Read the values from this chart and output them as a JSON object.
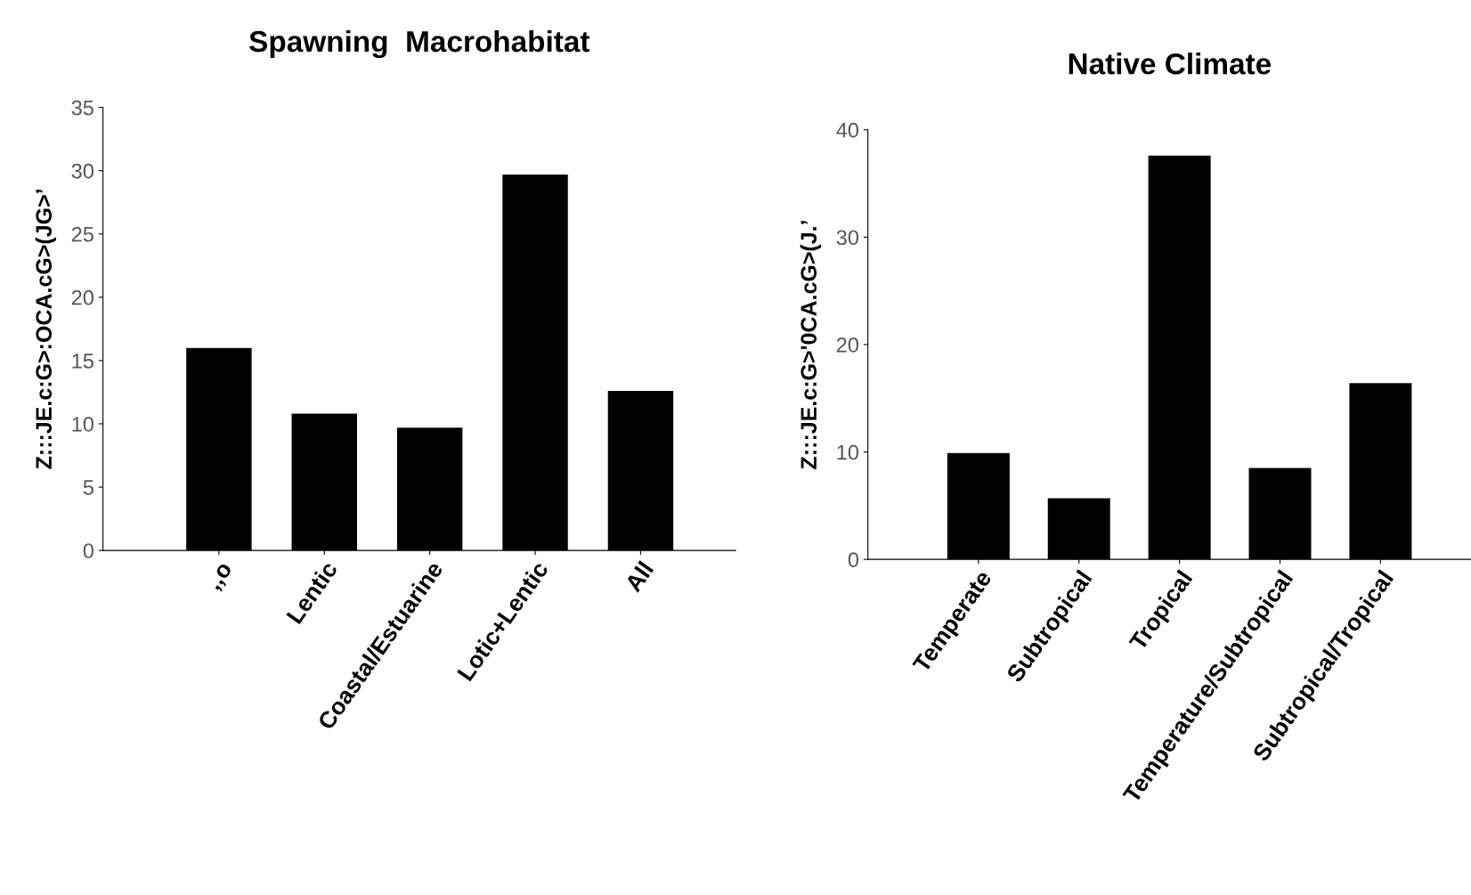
{
  "chart_data": [
    {
      "type": "bar",
      "title": "Spawning  Macrohabitat",
      "ylabel": "Z:::JE.c:G>:OCA.cG>(JG>’",
      "categories": [
        ",,o",
        "Lentic",
        "Coastal/Estuarine",
        "Lotic+Lentic",
        "All"
      ],
      "values": [
        16,
        10.8,
        9.7,
        29.7,
        12.6
      ],
      "color": "#000000",
      "ylim": [
        0,
        35
      ],
      "yticks": [
        0,
        5,
        10,
        15,
        20,
        25,
        30,
        35
      ],
      "grid": false,
      "legend": false
    },
    {
      "type": "bar",
      "title": "Native Climate",
      "ylabel": "Z:::JE.c:G>'0CA.cG>(J.’",
      "categories": [
        "Temperate",
        "Subtropical",
        "Tropical",
        "Temperature/Subtropical",
        "Subtropical/Tropical"
      ],
      "values": [
        9.9,
        5.7,
        37.6,
        8.5,
        16.4
      ],
      "color": "#000000",
      "ylim": [
        0,
        40
      ],
      "yticks": [
        0,
        10,
        20,
        30,
        40
      ],
      "grid": false,
      "legend": false
    }
  ]
}
